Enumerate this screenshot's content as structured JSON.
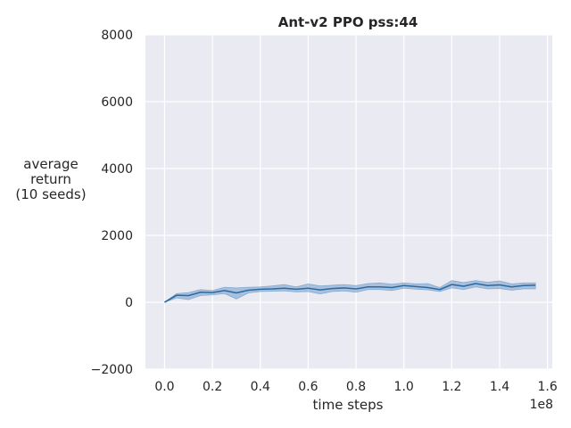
{
  "chart_data": {
    "type": "line",
    "title": "Ant-v2 PPO pss:44",
    "xlabel": "time steps",
    "ylabel_lines": [
      "average",
      "return",
      "(10 seeds)"
    ],
    "x_offset_label": "1e8",
    "xlim": [
      -0.08,
      1.62
    ],
    "ylim": [
      -2000,
      8000
    ],
    "x_ticks": [
      0.0,
      0.2,
      0.4,
      0.6,
      0.8,
      1.0,
      1.2,
      1.4,
      1.6
    ],
    "x_tick_labels": [
      "0.0",
      "0.2",
      "0.4",
      "0.6",
      "0.8",
      "1.0",
      "1.2",
      "1.4",
      "1.6"
    ],
    "y_ticks": [
      -2000,
      0,
      2000,
      4000,
      6000,
      8000
    ],
    "y_tick_labels": [
      "−2000",
      "0",
      "2000",
      "4000",
      "6000",
      "8000"
    ],
    "grid": true,
    "colors": {
      "background": "#eaeaf2",
      "grid": "#ffffff",
      "line": "#2b6aa0",
      "band": "#5a8fc4"
    },
    "series": [
      {
        "x": [
          0.0,
          0.05,
          0.1,
          0.15,
          0.2,
          0.25,
          0.3,
          0.35,
          0.4,
          0.45,
          0.5,
          0.55,
          0.6,
          0.65,
          0.7,
          0.75,
          0.8,
          0.85,
          0.9,
          0.95,
          1.0,
          1.05,
          1.1,
          1.15,
          1.2,
          1.25,
          1.3,
          1.35,
          1.4,
          1.45,
          1.5,
          1.55
        ],
        "y": [
          0,
          210,
          200,
          300,
          290,
          350,
          280,
          360,
          390,
          400,
          420,
          390,
          420,
          370,
          410,
          430,
          400,
          460,
          460,
          440,
          500,
          470,
          440,
          380,
          530,
          480,
          560,
          500,
          520,
          460,
          500,
          510
        ],
        "lower": [
          0,
          130,
          80,
          200,
          220,
          260,
          100,
          280,
          320,
          330,
          340,
          310,
          320,
          250,
          320,
          340,
          300,
          380,
          380,
          350,
          420,
          390,
          370,
          320,
          430,
          380,
          460,
          400,
          410,
          360,
          400,
          400
        ],
        "upper": [
          0,
          260,
          290,
          380,
          350,
          450,
          430,
          450,
          460,
          490,
          530,
          460,
          550,
          490,
          510,
          530,
          500,
          560,
          580,
          540,
          580,
          550,
          560,
          440,
          650,
          590,
          650,
          600,
          640,
          550,
          580,
          580
        ]
      }
    ]
  }
}
